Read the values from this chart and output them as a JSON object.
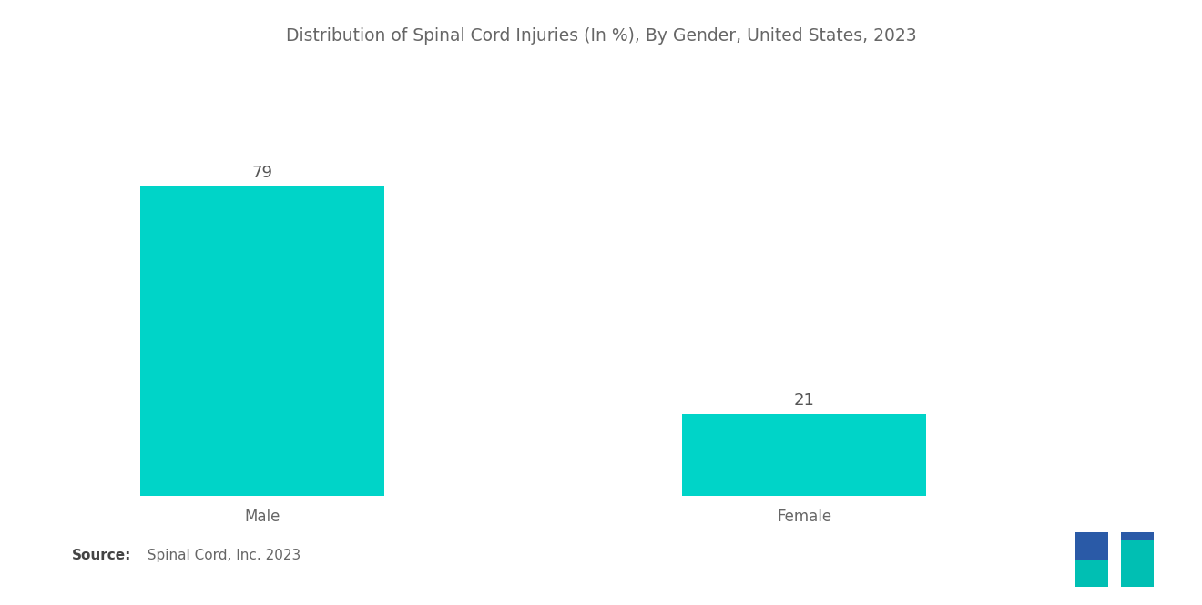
{
  "title": "Distribution of Spinal Cord Injuries (In %), By Gender, United States, 2023",
  "categories": [
    "Male",
    "Female"
  ],
  "values": [
    79,
    21
  ],
  "bar_color": "#00D4C8",
  "bar_positions": [
    1,
    3
  ],
  "bar_width": 0.9,
  "value_labels": [
    "79",
    "21"
  ],
  "source_bold": "Source:",
  "source_text": "  Spinal Cord, Inc. 2023",
  "background_color": "#ffffff",
  "title_color": "#666666",
  "label_color": "#666666",
  "value_color": "#555555",
  "title_fontsize": 13.5,
  "label_fontsize": 12,
  "value_fontsize": 13,
  "source_fontsize": 11,
  "ylim": [
    0,
    100
  ],
  "xlim": [
    0.3,
    4.2
  ]
}
